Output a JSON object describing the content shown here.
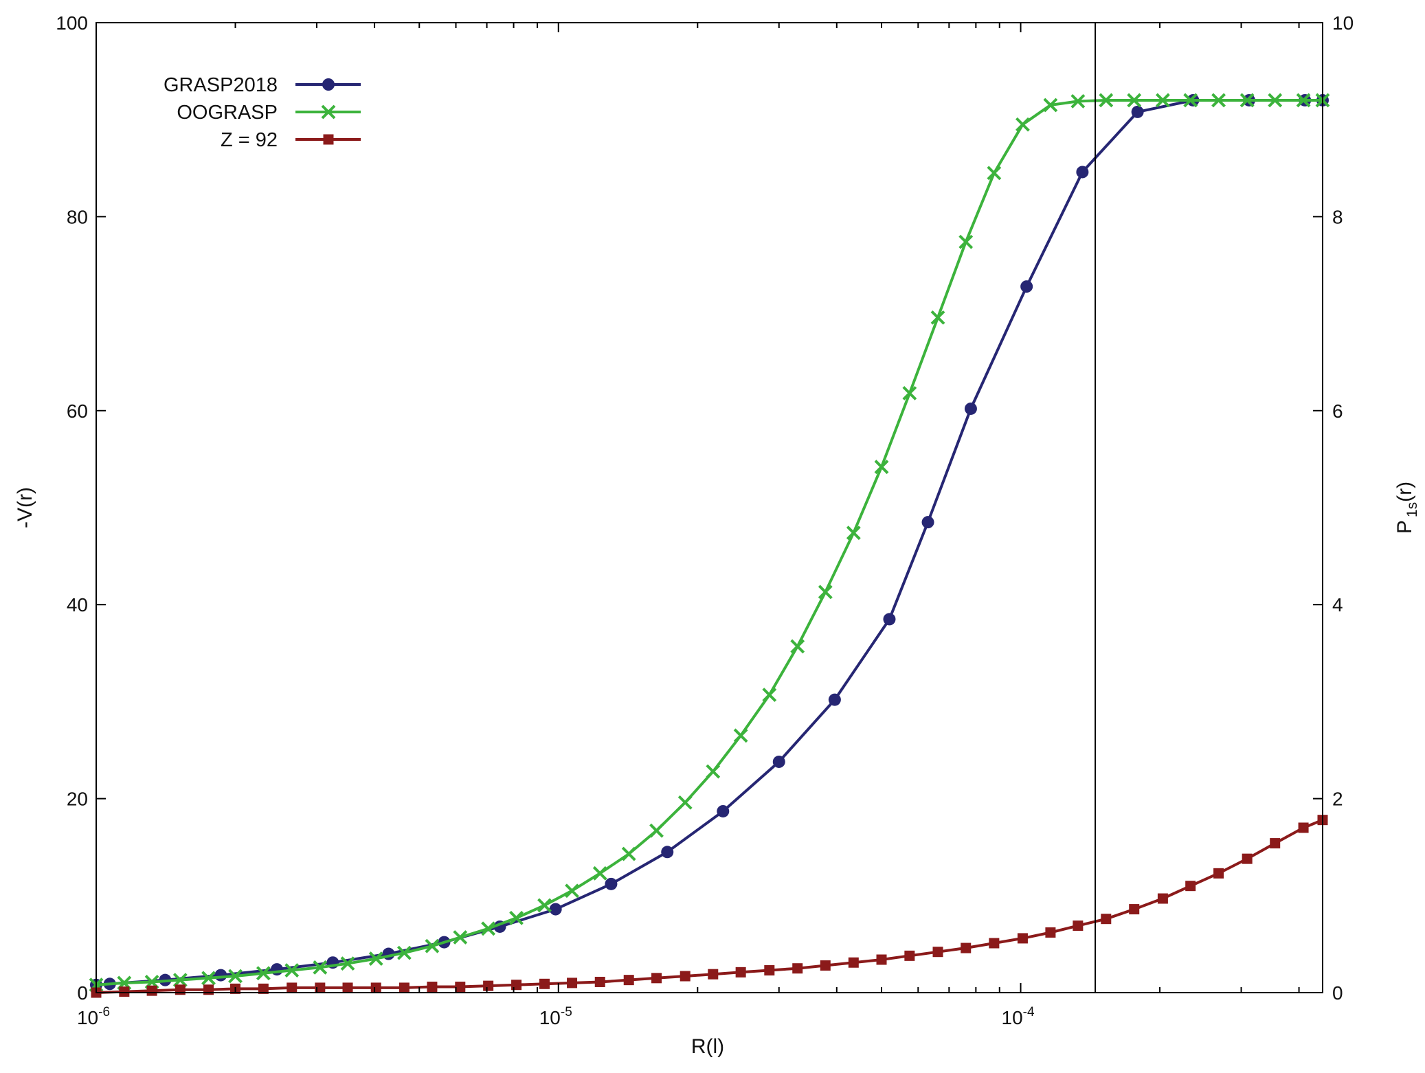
{
  "chart_data": {
    "type": "line",
    "title": "",
    "xlabel": "R(l)",
    "ylabel_left": "-V(r)",
    "ylabel_right_base": "P",
    "ylabel_right_sub": "1s",
    "ylabel_right_suffix": "(r)",
    "x_scale": "log",
    "xlim": [
      1e-06,
      0.00045
    ],
    "ylim_left": [
      0,
      100
    ],
    "ylim_right": [
      0,
      10
    ],
    "x_ticks": [
      {
        "value": 1e-06,
        "base": "10",
        "exp": "-6"
      },
      {
        "value": 1e-05,
        "base": "10",
        "exp": "-5"
      },
      {
        "value": 0.0001,
        "base": "10",
        "exp": "-4"
      }
    ],
    "y_ticks_left": [
      "0",
      "20",
      "40",
      "60",
      "80",
      "100"
    ],
    "y_ticks_right": [
      "0",
      "2",
      "4",
      "6",
      "8",
      "10"
    ],
    "vertical_line_x": 0.000145,
    "grid": false,
    "legend_position": "top-left",
    "series": [
      {
        "name": "GRASP2018",
        "axis": "left",
        "color": "#262673",
        "marker": "filled-circle",
        "x": [
          1e-06,
          1.07e-06,
          1.41e-06,
          1.86e-06,
          2.46e-06,
          3.25e-06,
          4.29e-06,
          5.66e-06,
          7.47e-06,
          9.86e-06,
          1.3e-05,
          1.72e-05,
          2.27e-05,
          3e-05,
          3.96e-05,
          5.2e-05,
          6.3e-05,
          7.8e-05,
          0.000103,
          0.000136,
          0.000179,
          0.000236,
          0.000312,
          0.000412,
          0.00045
        ],
        "y": [
          0.8,
          0.9,
          1.3,
          1.8,
          2.4,
          3.1,
          4.0,
          5.2,
          6.8,
          8.6,
          11.2,
          14.5,
          18.7,
          23.8,
          30.2,
          38.5,
          48.5,
          60.2,
          72.8,
          84.6,
          90.8,
          92.0,
          92.0,
          92.0,
          92.0
        ]
      },
      {
        "name": "OOGRASP",
        "axis": "left",
        "color": "#3cb33c",
        "marker": "x",
        "x": [
          1e-06,
          1.15e-06,
          1.32e-06,
          1.52e-06,
          1.75e-06,
          2e-06,
          2.3e-06,
          2.65e-06,
          3.05e-06,
          3.5e-06,
          4.03e-06,
          4.64e-06,
          5.33e-06,
          6.13e-06,
          7.05e-06,
          8.11e-06,
          9.33e-06,
          1.07e-05,
          1.23e-05,
          1.42e-05,
          1.63e-05,
          1.88e-05,
          2.16e-05,
          2.48e-05,
          2.86e-05,
          3.29e-05,
          3.78e-05,
          4.35e-05,
          5e-05,
          5.75e-05,
          6.62e-05,
          7.61e-05,
          8.76e-05,
          0.000101,
          0.000116,
          0.000133,
          0.000153,
          0.000176,
          0.000203,
          0.000233,
          0.000268,
          0.000309,
          0.000355,
          0.000409,
          0.00045
        ],
        "y": [
          0.8,
          1.0,
          1.1,
          1.3,
          1.5,
          1.7,
          2.0,
          2.3,
          2.6,
          3.0,
          3.5,
          4.1,
          4.8,
          5.7,
          6.6,
          7.7,
          9.0,
          10.5,
          12.3,
          14.3,
          16.7,
          19.6,
          22.8,
          26.5,
          30.7,
          35.7,
          41.3,
          47.4,
          54.2,
          61.8,
          69.6,
          77.4,
          84.5,
          89.5,
          91.5,
          91.9,
          92.0,
          92.0,
          92.0,
          92.0,
          92.0,
          92.0,
          92.0,
          92.0,
          92.0
        ]
      },
      {
        "name": "Z = 92",
        "axis": "right",
        "color": "#8b1a1a",
        "marker": "filled-square",
        "x": [
          1e-06,
          1.15e-06,
          1.32e-06,
          1.52e-06,
          1.75e-06,
          2e-06,
          2.3e-06,
          2.65e-06,
          3.05e-06,
          3.5e-06,
          4.03e-06,
          4.64e-06,
          5.33e-06,
          6.13e-06,
          7.05e-06,
          8.11e-06,
          9.33e-06,
          1.07e-05,
          1.23e-05,
          1.42e-05,
          1.63e-05,
          1.88e-05,
          2.16e-05,
          2.48e-05,
          2.86e-05,
          3.29e-05,
          3.78e-05,
          4.35e-05,
          5e-05,
          5.75e-05,
          6.62e-05,
          7.61e-05,
          8.76e-05,
          0.000101,
          0.000116,
          0.000133,
          0.000153,
          0.000176,
          0.000203,
          0.000233,
          0.000268,
          0.000309,
          0.000355,
          0.000409,
          0.00045
        ],
        "y": [
          0.0,
          0.01,
          0.02,
          0.03,
          0.03,
          0.04,
          0.04,
          0.05,
          0.05,
          0.05,
          0.05,
          0.05,
          0.06,
          0.06,
          0.07,
          0.08,
          0.09,
          0.1,
          0.11,
          0.13,
          0.15,
          0.17,
          0.19,
          0.21,
          0.23,
          0.25,
          0.28,
          0.31,
          0.34,
          0.38,
          0.42,
          0.46,
          0.51,
          0.56,
          0.62,
          0.69,
          0.76,
          0.86,
          0.97,
          1.1,
          1.23,
          1.38,
          1.54,
          1.7,
          1.78
        ]
      }
    ]
  }
}
